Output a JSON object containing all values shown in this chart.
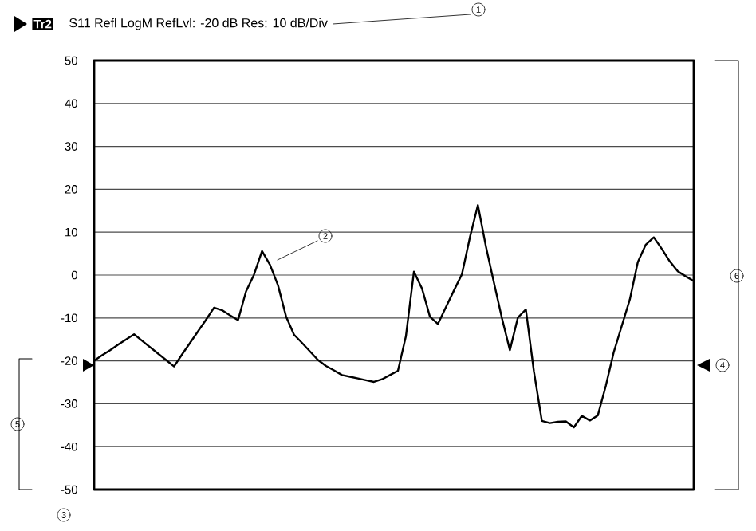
{
  "chart_data": {
    "type": "line",
    "title": "Tr2",
    "subtitle": "S11 Refl LogM RefLvl: -20 dB Res: 10 dB/Div",
    "categories": [
      null,
      null,
      null,
      null,
      null,
      null,
      null,
      null,
      null,
      null,
      null,
      null,
      null,
      null,
      null,
      null,
      null,
      null,
      null,
      null,
      null,
      null,
      null,
      null,
      null,
      null,
      null,
      null,
      null,
      null,
      null,
      null,
      null,
      null,
      null,
      null,
      null,
      null,
      null,
      null,
      null,
      null,
      null,
      null,
      null,
      null,
      null,
      null,
      null,
      null,
      null,
      null,
      null,
      null,
      null,
      null,
      null,
      null,
      null,
      null,
      null,
      null,
      null,
      null,
      null,
      null,
      null,
      null,
      null,
      null,
      null,
      null,
      null,
      null,
      null,
      null
    ],
    "values": [
      -20,
      -18.7,
      -17.5,
      -16.2,
      -15,
      -13.8,
      -15.3,
      -16.8,
      -18.3,
      -19.8,
      -21.3,
      -18.5,
      -15.8,
      -13.1,
      -10.4,
      -7.6,
      -8.2,
      -9.4,
      -10.5,
      -3.8,
      0.1,
      5.6,
      2.4,
      -2.4,
      -9.6,
      -13.9,
      -15.8,
      -17.8,
      -19.8,
      -21.2,
      -22.2,
      -23.3,
      -23.7,
      -24.1,
      -24.5,
      -24.9,
      -24.3,
      -23.3,
      -22.3,
      -14.2,
      0.8,
      -3.1,
      -9.7,
      -11.4,
      -7.5,
      -3.6,
      0.2,
      8.8,
      16.3,
      6.7,
      -1.7,
      -10,
      -17.5,
      -9.9,
      -8,
      -22.4,
      -34,
      -34.5,
      -34.2,
      -34.1,
      -35.5,
      -32.8,
      -33.9,
      -32.7,
      -25.8,
      -17.9,
      -11.8,
      -5.7,
      3,
      7.1,
      8.8,
      6.1,
      3.2,
      0.9,
      -0.3,
      -1.4
    ],
    "color": "#000000",
    "ylim": [
      -50,
      50
    ],
    "yticks": [
      -50,
      -40,
      -30,
      -20,
      -10,
      0,
      10,
      20,
      30,
      40,
      50
    ],
    "tick_labels": "y",
    "grid": "y",
    "marker": "none",
    "line_style": "solid",
    "annotations": [
      "1",
      "2",
      "3",
      "4",
      "5",
      "6"
    ]
  }
}
